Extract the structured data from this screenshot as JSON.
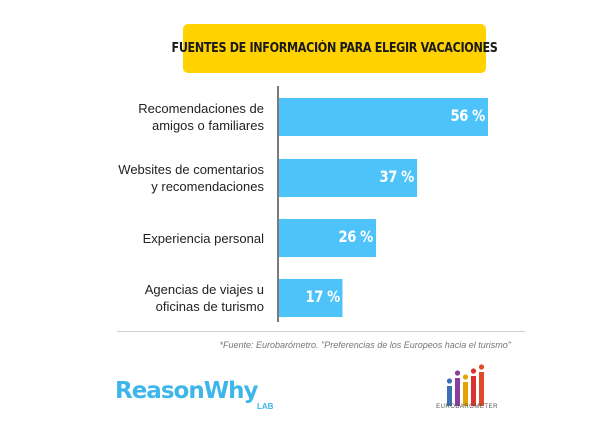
{
  "chart_data": {
    "type": "bar",
    "orientation": "horizontal",
    "title": "FUENTES DE INFORMACIÓN PARA ELEGIR VACACIONES",
    "categories": [
      [
        "Recomendaciones de",
        "amigos o familiares"
      ],
      [
        "Websites de comentarios",
        "y recomendaciones"
      ],
      [
        "Experiencia personal"
      ],
      [
        "Agencias de viajes u",
        "oficinas de turismo"
      ]
    ],
    "values": [
      56,
      37,
      26,
      17
    ],
    "value_labels": [
      "56 %",
      "37 %",
      "26 %",
      "17 %"
    ],
    "unit": "%",
    "xlim": [
      0,
      56
    ],
    "bar_color": "#4dc3fa",
    "axis_color": "#222222",
    "grid": false,
    "legend": false
  },
  "title_bg": "#ffd200",
  "source": "*Fuente: Eurobarómetro. \"Preferencias de los Europeos hacia el turismo\"",
  "logos": {
    "reasonwhy": "ReasonWhy",
    "reasonwhy_sub": "LAB",
    "eurobarometer": "EUROBAROMETER"
  }
}
